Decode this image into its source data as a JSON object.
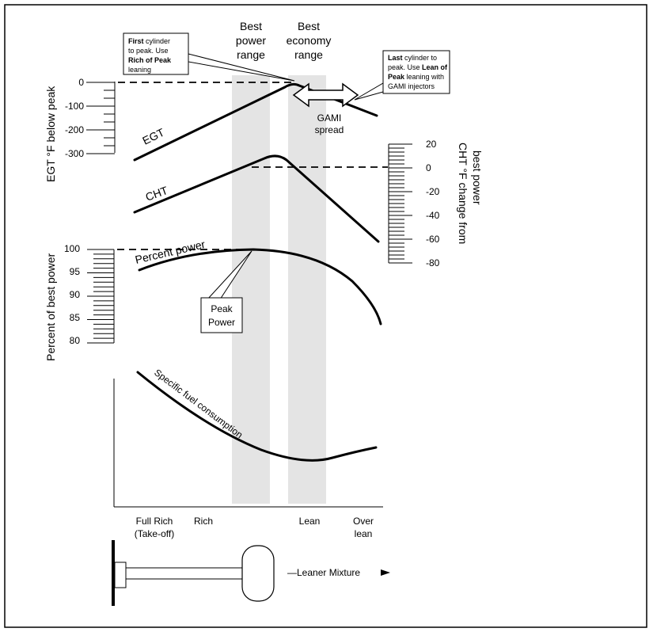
{
  "colors": {
    "band": "#e4e4e4",
    "line": "#000000",
    "background": "#ffffff"
  },
  "labels": {
    "best_power": [
      "Best",
      "power",
      "range"
    ],
    "best_economy": [
      "Best",
      "economy",
      "range"
    ],
    "first_callout": {
      "line1_bold": "First",
      "line1_rest": " cylinder",
      "line2": "to peak. Use",
      "line3_bold": "Rich of Peak",
      "line4": "leaning"
    },
    "last_callout": {
      "line1_bold": "Last",
      "line1_rest": " cylinder to",
      "line2_pre": "peak. Use ",
      "line2_bold": "Lean of",
      "line3_bold": "Peak",
      "line3_rest": " leaning with",
      "line4": "GAMI injectors"
    },
    "gami": [
      "GAMI",
      "spread"
    ],
    "egt_curve": "EGT",
    "cht_curve": "CHT",
    "percent_power_curve": "Percent power",
    "peak_power": [
      "Peak",
      "Power"
    ],
    "sfc_curve": "Specific fuel consumption",
    "leaner_mixture": "—Leaner Mixture"
  },
  "axes": {
    "egt": {
      "label": "EGT °F below peak",
      "ticks": [
        "0",
        "-100",
        "-200",
        "-300"
      ]
    },
    "cht": {
      "label_line1": "CHT °F change from",
      "label_line2": "best power",
      "ticks": [
        "20",
        "0",
        "-20",
        "-40",
        "-60",
        "-80"
      ]
    },
    "power": {
      "label": "Percent of best power",
      "ticks": [
        "100",
        "95",
        "90",
        "85",
        "80"
      ]
    }
  },
  "mixture": {
    "full_rich": [
      "Full Rich",
      "(Take-off)"
    ],
    "rich": "Rich",
    "lean": "Lean",
    "over_lean": [
      "Over",
      "lean"
    ]
  }
}
